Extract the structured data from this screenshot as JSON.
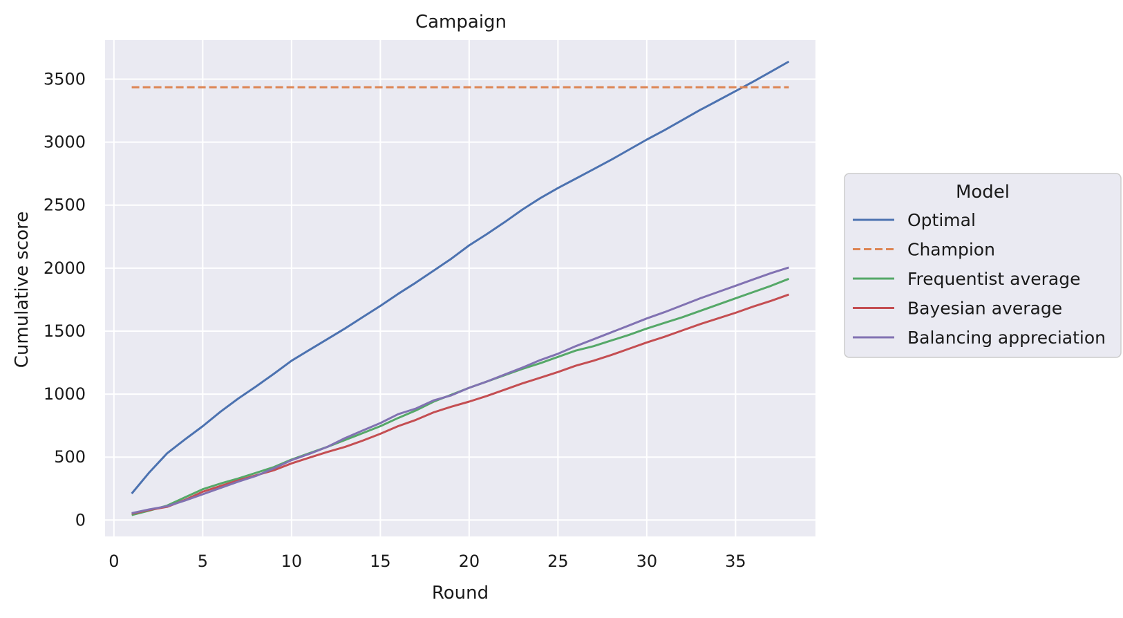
{
  "chart_data": {
    "type": "line",
    "title": "Campaign",
    "xlabel": "Round",
    "ylabel": "Cumulative score",
    "xlim": [
      -0.5,
      39.5
    ],
    "ylim": [
      -130,
      3810
    ],
    "xticks": [
      0,
      5,
      10,
      15,
      20,
      25,
      30,
      35
    ],
    "yticks": [
      0,
      500,
      1000,
      1500,
      2000,
      2500,
      3000,
      3500
    ],
    "grid": true,
    "legend": {
      "title": "Model",
      "placement": "center-right, outside plot"
    },
    "x": [
      1,
      2,
      3,
      4,
      5,
      6,
      7,
      8,
      9,
      10,
      11,
      12,
      13,
      14,
      15,
      16,
      17,
      18,
      19,
      20,
      21,
      22,
      23,
      24,
      25,
      26,
      27,
      28,
      29,
      30,
      31,
      32,
      33,
      34,
      35,
      36,
      37,
      38
    ],
    "series": [
      {
        "name": "Optimal",
        "color": "#4c72b0",
        "dashed": false,
        "values": [
          210,
          380,
          530,
          640,
          745,
          860,
          965,
          1060,
          1160,
          1265,
          1350,
          1435,
          1520,
          1610,
          1700,
          1795,
          1885,
          1980,
          2075,
          2180,
          2270,
          2365,
          2465,
          2555,
          2635,
          2710,
          2785,
          2860,
          2940,
          3020,
          3095,
          3175,
          3255,
          3330,
          3405,
          3480,
          3560,
          3640
        ]
      },
      {
        "name": "Champion",
        "color": "#dd8452",
        "dashed": true,
        "values": [
          3435,
          3435,
          3435,
          3435,
          3435,
          3435,
          3435,
          3435,
          3435,
          3435,
          3435,
          3435,
          3435,
          3435,
          3435,
          3435,
          3435,
          3435,
          3435,
          3435,
          3435,
          3435,
          3435,
          3435,
          3435,
          3435,
          3435,
          3435,
          3435,
          3435,
          3435,
          3435,
          3435,
          3435,
          3435,
          3435,
          3435,
          3435
        ]
      },
      {
        "name": "Frequentist average",
        "color": "#55a868",
        "dashed": false,
        "values": [
          40,
          75,
          115,
          180,
          245,
          290,
          330,
          375,
          420,
          480,
          530,
          580,
          635,
          690,
          745,
          810,
          870,
          940,
          995,
          1050,
          1100,
          1150,
          1200,
          1245,
          1295,
          1345,
          1380,
          1425,
          1470,
          1520,
          1565,
          1610,
          1660,
          1710,
          1760,
          1810,
          1860,
          1915
        ]
      },
      {
        "name": "Bayesian average",
        "color": "#c44e52",
        "dashed": false,
        "values": [
          50,
          80,
          105,
          160,
          225,
          270,
          315,
          355,
          395,
          450,
          495,
          540,
          580,
          630,
          685,
          745,
          795,
          855,
          900,
          940,
          985,
          1035,
          1085,
          1130,
          1175,
          1225,
          1265,
          1310,
          1360,
          1410,
          1455,
          1505,
          1555,
          1600,
          1645,
          1695,
          1740,
          1790
        ]
      },
      {
        "name": "Balancing appreciation",
        "color": "#8172b2",
        "dashed": false,
        "values": [
          55,
          85,
          110,
          155,
          205,
          255,
          305,
          350,
          410,
          475,
          525,
          580,
          650,
          710,
          770,
          840,
          885,
          950,
          990,
          1050,
          1100,
          1155,
          1210,
          1270,
          1320,
          1380,
          1435,
          1490,
          1545,
          1600,
          1650,
          1705,
          1760,
          1810,
          1860,
          1910,
          1960,
          2005
        ]
      }
    ]
  }
}
